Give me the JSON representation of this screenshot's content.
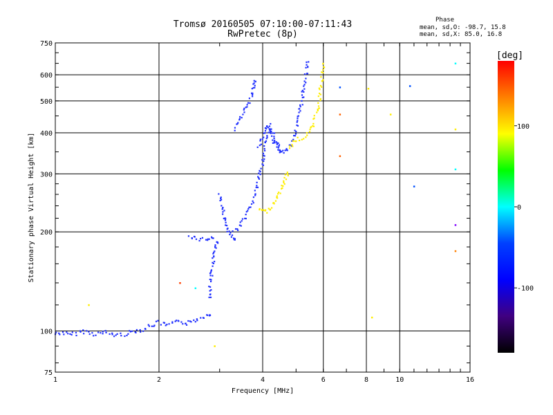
{
  "chart_data": {
    "type": "scatter",
    "title": "Tromsø 20160505 07:10:00-07:11:43",
    "subtitle": "RwPretec (8p)",
    "xlabel": "Frequency [MHz]",
    "ylabel": "Stationary phase Virtual Height [km]",
    "x_scale": "log",
    "y_scale": "log",
    "xlim": [
      1,
      16
    ],
    "ylim": [
      75,
      750
    ],
    "x_ticks": [
      1,
      2,
      4,
      6,
      8,
      10,
      16
    ],
    "x_tick_labels": [
      "1",
      "2",
      "4",
      "6",
      "8",
      "10",
      "16"
    ],
    "y_ticks": [
      75,
      100,
      200,
      300,
      400,
      500,
      600,
      750
    ],
    "y_tick_labels": [
      "75",
      "100",
      "200",
      "300",
      "400",
      "500",
      "600",
      "750"
    ],
    "grid": true,
    "stats": {
      "heading": "Phase",
      "o_line": "mean, sd,O: -98.7, 15.8",
      "x_line": "mean, sd,X: 85.0, 16.8"
    },
    "colorbar": {
      "label": "[deg]",
      "range": [
        -180,
        180
      ],
      "ticks": [
        100,
        0,
        -100
      ],
      "tick_labels": [
        "100",
        "0",
        "-100"
      ],
      "colors": [
        "#ff0000",
        "#ff8000",
        "#ffff00",
        "#00ff00",
        "#00ffff",
        "#0040ff",
        "#0000ff",
        "#400080",
        "#000000"
      ]
    },
    "series": [
      {
        "phase": -100,
        "color": "#2030ff",
        "traces": [
          {
            "x": [
              1.0,
              1.05,
              1.1,
              1.2,
              1.3,
              1.4,
              1.5,
              1.6,
              1.7,
              1.8,
              1.9,
              2.0,
              2.1,
              2.2,
              2.3,
              2.4,
              2.5,
              2.6,
              2.7,
              2.8
            ],
            "y": [
              98,
              99,
              97,
              100,
              98,
              99,
              97,
              98,
              100,
              101,
              104,
              106,
              104,
              105,
              108,
              105,
              107,
              109,
              111,
              113
            ]
          },
          {
            "x": [
              2.8,
              2.82,
              2.85,
              2.88,
              2.9,
              2.92,
              2.95
            ],
            "y": [
              125,
              140,
              155,
              165,
              175,
              180,
              185
            ]
          },
          {
            "x": [
              2.45,
              2.55,
              2.65,
              2.75,
              2.85
            ],
            "y": [
              195,
              192,
              190,
              190,
              192
            ]
          },
          {
            "x": [
              3.0,
              3.05,
              3.1,
              3.15,
              3.2,
              3.25,
              3.3
            ],
            "y": [
              260,
              240,
              220,
              205,
              198,
              194,
              192
            ]
          },
          {
            "x": [
              3.3,
              3.4,
              3.5,
              3.6,
              3.7,
              3.8,
              3.9,
              4.0,
              4.1,
              4.2,
              4.3,
              4.4,
              4.5,
              4.6,
              4.7,
              4.8,
              4.9,
              5.0,
              5.1,
              5.2,
              5.3,
              5.4
            ],
            "y": [
              200,
              205,
              215,
              225,
              240,
              260,
              290,
              330,
              380,
              420,
              400,
              370,
              355,
              350,
              355,
              365,
              385,
              410,
              450,
              500,
              580,
              650
            ]
          },
          {
            "x": [
              3.3,
              3.4,
              3.5,
              3.6,
              3.7,
              3.75,
              3.8
            ],
            "y": [
              410,
              430,
              455,
              480,
              510,
              540,
              580
            ]
          },
          {
            "x": [
              3.9,
              4.0,
              4.1,
              4.2,
              4.3,
              4.4,
              4.5
            ],
            "y": [
              360,
              390,
              420,
              400,
              380,
              360,
              350
            ]
          }
        ]
      },
      {
        "phase": 100,
        "color": "#ffee00",
        "traces": [
          {
            "x": [
              3.9,
              4.0,
              4.1,
              4.2,
              4.3,
              4.4,
              4.5,
              4.6,
              4.7
            ],
            "y": [
              235,
              232,
              230,
              235,
              245,
              255,
              265,
              280,
              300
            ]
          },
          {
            "x": [
              4.8,
              4.9,
              5.0,
              5.2,
              5.4,
              5.6,
              5.8,
              6.0
            ],
            "y": [
              360,
              375,
              380,
              385,
              400,
              420,
              480,
              640
            ]
          }
        ]
      }
    ],
    "scattered_points": [
      {
        "x": 1.25,
        "y": 120,
        "color": "#ffee00"
      },
      {
        "x": 2.3,
        "y": 140,
        "color": "#ff4000"
      },
      {
        "x": 2.55,
        "y": 135,
        "color": "#00ffff"
      },
      {
        "x": 2.9,
        "y": 90,
        "color": "#ffee00"
      },
      {
        "x": 6.7,
        "y": 455,
        "color": "#ff6000"
      },
      {
        "x": 6.7,
        "y": 340,
        "color": "#ff6000"
      },
      {
        "x": 6.7,
        "y": 550,
        "color": "#0050ff"
      },
      {
        "x": 8.1,
        "y": 545,
        "color": "#ffee00"
      },
      {
        "x": 8.3,
        "y": 110,
        "color": "#ffee00"
      },
      {
        "x": 9.4,
        "y": 455,
        "color": "#ffee00"
      },
      {
        "x": 10.7,
        "y": 555,
        "color": "#0050ff"
      },
      {
        "x": 11.0,
        "y": 275,
        "color": "#0050ff"
      },
      {
        "x": 14.5,
        "y": 650,
        "color": "#00ffff"
      },
      {
        "x": 14.5,
        "y": 410,
        "color": "#ffee00"
      },
      {
        "x": 14.5,
        "y": 310,
        "color": "#00ffff"
      },
      {
        "x": 14.5,
        "y": 210,
        "color": "#8000ff"
      },
      {
        "x": 14.5,
        "y": 175,
        "color": "#ff8000"
      }
    ]
  }
}
